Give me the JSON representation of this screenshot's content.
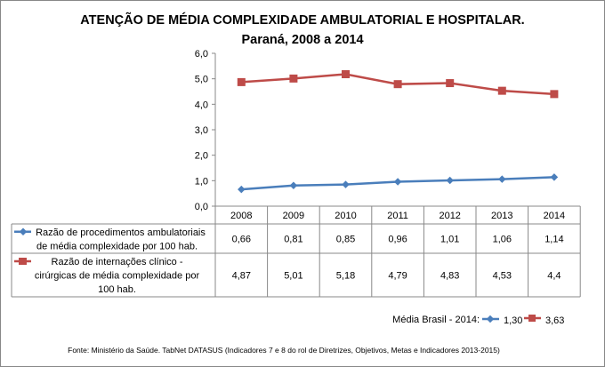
{
  "chart_data": {
    "type": "line",
    "title": "ATENÇÃO DE MÉDIA COMPLEXIDADE AMBULATORIAL E HOSPITALAR.",
    "subtitle": "Paraná, 2008 a 2014",
    "categories": [
      "2008",
      "2009",
      "2010",
      "2011",
      "2012",
      "2013",
      "2014"
    ],
    "ylim": [
      0,
      6
    ],
    "yticks": [
      "0,0",
      "1,0",
      "2,0",
      "3,0",
      "4,0",
      "5,0",
      "6,0"
    ],
    "series": [
      {
        "name": "Razão de procedimentos ambulatoriais de média complexidade por 100 hab.",
        "name_lines": [
          "Razão de procedimentos ambulatoriais",
          "de média complexidade por 100 hab."
        ],
        "values": [
          0.66,
          0.81,
          0.85,
          0.96,
          1.01,
          1.06,
          1.14
        ],
        "labels": [
          "0,66",
          "0,81",
          "0,85",
          "0,96",
          "1,01",
          "1,06",
          "1,14"
        ],
        "color": "#4a7ebb",
        "marker": "diamond"
      },
      {
        "name": "Razão de internações clínico - cirúrgicas de média complexidade por 100 hab.",
        "name_lines": [
          "Razão de internações clínico -",
          "cirúrgicas de média complexidade por",
          "100 hab."
        ],
        "values": [
          4.87,
          5.01,
          5.18,
          4.79,
          4.83,
          4.53,
          4.4
        ],
        "labels": [
          "4,87",
          "5,01",
          "5,18",
          "4,79",
          "4,83",
          "4,53",
          "4,4"
        ],
        "color": "#be4b48",
        "marker": "square"
      }
    ],
    "legend_note": {
      "label": "Média Brasil - 2014:",
      "values": [
        "1,30",
        "3,63"
      ]
    },
    "source": "Fonte: Ministério da Saúde. TabNet DATASUS (Indicadores 7 e 8 do rol de Diretrizes, Objetivos, Metas e Indicadores 2013-2015)"
  }
}
